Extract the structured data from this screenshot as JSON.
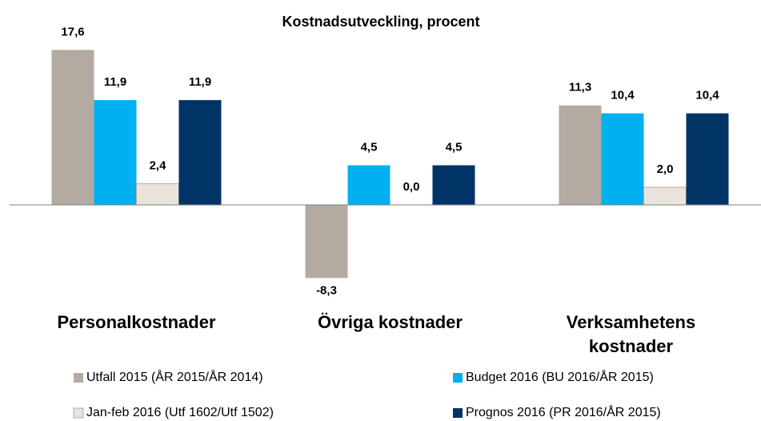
{
  "chart_data": {
    "type": "bar",
    "title": "Kostnadsutveckling, procent",
    "categories": [
      "Personalkostnader",
      "Övriga kostnader",
      "Verksamhetens kostnader"
    ],
    "ylim": [
      -10,
      20
    ],
    "series": [
      {
        "name": "Utfall 2015 (ÅR 2015/ÅR 2014)",
        "color": "#b3aba1",
        "values": [
          17.6,
          -8.3,
          11.3
        ],
        "value_labels": [
          "17,6",
          "-8,3",
          "11,3"
        ]
      },
      {
        "name": "Budget 2016 (BU 2016/ÅR 2015)",
        "color": "#00b0f0",
        "values": [
          11.9,
          4.5,
          10.4
        ],
        "value_labels": [
          "11,9",
          "4,5",
          "10,4"
        ]
      },
      {
        "name": "Jan-feb 2016 (Utf 1602/Utf 1502)",
        "color": "#ebe4dc",
        "values": [
          2.4,
          0.0,
          2.0
        ],
        "value_labels": [
          "2,4",
          "0,0",
          "2,0"
        ]
      },
      {
        "name": "Prognos 2016 (PR 2016/ÅR 2015)",
        "color": "#003366",
        "values": [
          11.9,
          4.5,
          10.4
        ],
        "value_labels": [
          "11,9",
          "4,5",
          "10,4"
        ]
      }
    ]
  }
}
